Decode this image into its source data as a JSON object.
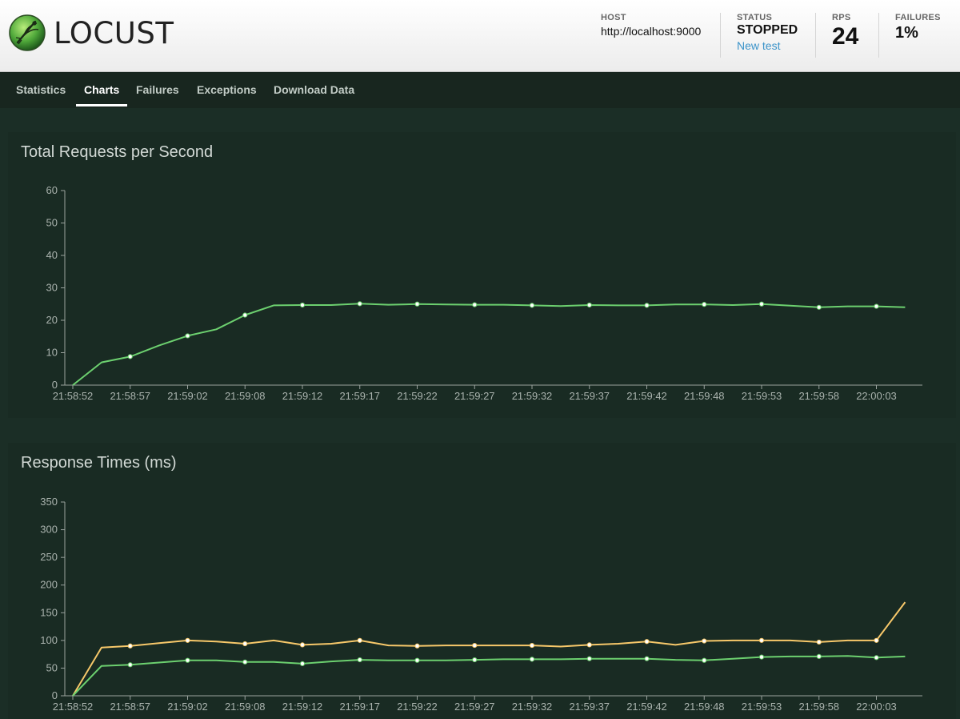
{
  "app": {
    "name": "LOCUST"
  },
  "header": {
    "host": {
      "label": "HOST",
      "value": "http://localhost:9000"
    },
    "status": {
      "label": "STATUS",
      "value": "STOPPED",
      "link": "New test"
    },
    "rps": {
      "label": "RPS",
      "value": "24"
    },
    "failures": {
      "label": "FAILURES",
      "value": "1%"
    }
  },
  "nav": {
    "tabs": [
      {
        "label": "Statistics"
      },
      {
        "label": "Charts",
        "active": true
      },
      {
        "label": "Failures"
      },
      {
        "label": "Exceptions"
      },
      {
        "label": "Download Data"
      }
    ]
  },
  "colors": {
    "green": "#6cd06f",
    "yellow": "#f7c86a",
    "axis": "#9aa39e"
  },
  "chart_data": [
    {
      "type": "line",
      "title": "Total Requests per Second",
      "x_tick_labels": [
        "21:58:52",
        "21:58:57",
        "21:59:02",
        "21:59:08",
        "21:59:12",
        "21:59:17",
        "21:59:22",
        "21:59:27",
        "21:59:32",
        "21:59:37",
        "21:59:42",
        "21:59:48",
        "21:59:53",
        "21:59:58",
        "22:00:03"
      ],
      "ylim": [
        0,
        60
      ],
      "y_ticks": [
        0,
        10,
        20,
        30,
        40,
        50,
        60
      ],
      "series": [
        {
          "color": "#6cd06f",
          "values": [
            0,
            7,
            8.8,
            12.2,
            15.2,
            17.2,
            21.6,
            24.6,
            24.7,
            24.7,
            25.1,
            24.8,
            25,
            24.9,
            24.8,
            24.8,
            24.6,
            24.4,
            24.7,
            24.6,
            24.6,
            24.9,
            24.9,
            24.7,
            25,
            24.5,
            24,
            24.3,
            24.3,
            24
          ]
        }
      ]
    },
    {
      "type": "line",
      "title": "Response Times (ms)",
      "x_tick_labels": [
        "21:58:52",
        "21:58:57",
        "21:59:02",
        "21:59:08",
        "21:59:12",
        "21:59:17",
        "21:59:22",
        "21:59:27",
        "21:59:32",
        "21:59:37",
        "21:59:42",
        "21:59:48",
        "21:59:53",
        "21:59:58",
        "22:00:03"
      ],
      "ylim": [
        0,
        350
      ],
      "y_ticks": [
        0,
        50,
        100,
        150,
        200,
        250,
        300,
        350
      ],
      "series": [
        {
          "color": "#f7c86a",
          "values": [
            0,
            87,
            90,
            95,
            100,
            98,
            94,
            100,
            92,
            94,
            100,
            91,
            90,
            91,
            91,
            91,
            91,
            89,
            92,
            94,
            98,
            92,
            99,
            100,
            100,
            100,
            97,
            100,
            100,
            169
          ]
        },
        {
          "color": "#6cd06f",
          "values": [
            0,
            54,
            56,
            60,
            64,
            64,
            61,
            61,
            58,
            62,
            65,
            64,
            64,
            64,
            65,
            66,
            66,
            66,
            67,
            67,
            67,
            65,
            64,
            67,
            70,
            71,
            71,
            72,
            69,
            71
          ]
        }
      ]
    }
  ]
}
